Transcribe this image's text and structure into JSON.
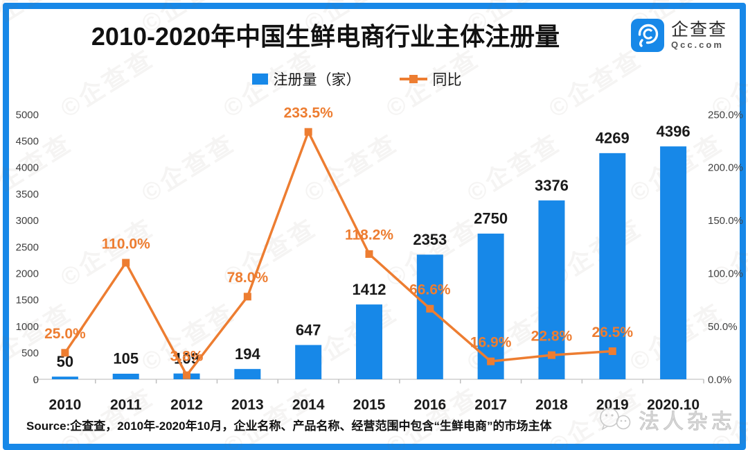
{
  "header": {
    "title": "2010-2020年中国生鲜电商行业主体注册量",
    "logo": {
      "name": "企查查",
      "domain": "Qcc.com",
      "color": "#1788e8"
    }
  },
  "legend": {
    "items": [
      {
        "label": "注册量（家）",
        "color": "#1788e8",
        "marker": "square"
      },
      {
        "label": "同比",
        "color": "#ED7D31",
        "marker": "line-square"
      }
    ]
  },
  "chart_data": {
    "type": "bar+line",
    "title": "2010-2020年中国生鲜电商行业主体注册量",
    "categories": [
      "2010",
      "2011",
      "2012",
      "2013",
      "2014",
      "2015",
      "2016",
      "2017",
      "2018",
      "2019",
      "2020.10"
    ],
    "series": [
      {
        "name": "注册量（家）",
        "type": "bar",
        "axis": "left",
        "color": "#1788e8",
        "values": [
          50,
          105,
          109,
          194,
          647,
          1412,
          2353,
          2750,
          3376,
          4269,
          4396
        ],
        "labels": [
          "50",
          "105",
          "109",
          "194",
          "647",
          "1412",
          "2353",
          "2750",
          "3376",
          "4269",
          "4396"
        ]
      },
      {
        "name": "同比",
        "type": "line",
        "axis": "right",
        "color": "#ED7D31",
        "values": [
          25.0,
          110.0,
          3.8,
          78.0,
          233.5,
          118.2,
          66.6,
          16.9,
          22.8,
          26.5,
          null
        ],
        "labels": [
          "25.0%",
          "110.0%",
          "3.8%",
          "78.0%",
          "233.5%",
          "118.2%",
          "66.6%",
          "16.9%",
          "22.8%",
          "26.5%",
          ""
        ]
      }
    ],
    "left_axis": {
      "min": 0,
      "max": 5000,
      "step": 500,
      "ticks": [
        "0",
        "500",
        "1000",
        "1500",
        "2000",
        "2500",
        "3000",
        "3500",
        "4000",
        "4500",
        "5000"
      ]
    },
    "right_axis": {
      "min": 0,
      "max": 250,
      "step": 50,
      "ticks": [
        "0.0%",
        "50.0%",
        "100.0%",
        "150.0%",
        "200.0%",
        "250.0%"
      ]
    },
    "grid": false,
    "legend_position": "top"
  },
  "footer": {
    "source": "Source:企查查，2010年-2020年10月，企业名称、产品名称、经营范围中包含“生鲜电商”的市场主体"
  },
  "watermark": {
    "brand": "企查查",
    "bottom_right": "法人杂志"
  },
  "colors": {
    "frame_border": "#1788e8",
    "bar_blue": "#1788e8",
    "line_orange": "#ED7D31",
    "axis_text": "#404040",
    "axis_line": "#cfcfcf"
  }
}
